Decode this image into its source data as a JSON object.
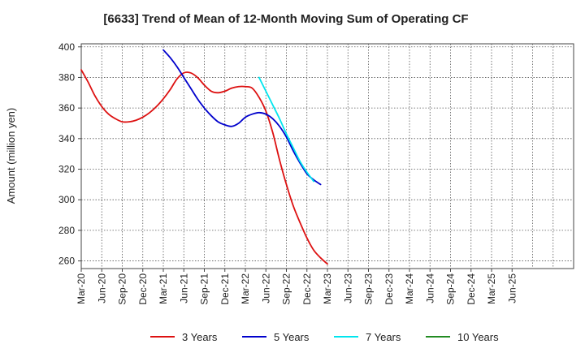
{
  "chart_data": {
    "type": "line",
    "title": "[6633]  Trend of Mean of 12-Month Moving Sum of Operating CF",
    "xlabel": "",
    "ylabel": "Amount (million yen)",
    "ylim": [
      255,
      402
    ],
    "yticks": [
      260,
      280,
      300,
      320,
      340,
      360,
      380,
      400
    ],
    "grid": true,
    "legend_position": "bottom",
    "x_tick_labels": [
      "Mar-20",
      "Jun-20",
      "Sep-20",
      "Dec-20",
      "Mar-21",
      "Jun-21",
      "Sep-21",
      "Dec-21",
      "Mar-22",
      "Jun-22",
      "Sep-22",
      "Dec-22",
      "Mar-23",
      "Jun-23",
      "Sep-23",
      "Dec-23",
      "Mar-24",
      "Jun-24",
      "Sep-24",
      "Dec-24",
      "Mar-25",
      "Jun-25"
    ],
    "series": [
      {
        "name": "3 Years",
        "color": "#dd1111",
        "points": [
          [
            0,
            385
          ],
          [
            1,
            377
          ],
          [
            2,
            368
          ],
          [
            3,
            361
          ],
          [
            4,
            356
          ],
          [
            5,
            353
          ],
          [
            6,
            351
          ],
          [
            7,
            351
          ],
          [
            8,
            352
          ],
          [
            9,
            354
          ],
          [
            10,
            357
          ],
          [
            11,
            361
          ],
          [
            12,
            366
          ],
          [
            13,
            372
          ],
          [
            14,
            379
          ],
          [
            15,
            383
          ],
          [
            16,
            383
          ],
          [
            17,
            380
          ],
          [
            18,
            375
          ],
          [
            19,
            371
          ],
          [
            20,
            370
          ],
          [
            21,
            371
          ],
          [
            22,
            373
          ],
          [
            23,
            374
          ],
          [
            24,
            374
          ],
          [
            25,
            373
          ],
          [
            26,
            367
          ],
          [
            27,
            358
          ],
          [
            28,
            344
          ],
          [
            29,
            326
          ],
          [
            30,
            310
          ],
          [
            31,
            296
          ],
          [
            32,
            285
          ],
          [
            33,
            275
          ],
          [
            34,
            267
          ],
          [
            35,
            262
          ],
          [
            36,
            258
          ]
        ]
      },
      {
        "name": "5 Years",
        "color": "#0000cc",
        "points": [
          [
            12,
            398
          ],
          [
            13,
            393
          ],
          [
            14,
            387
          ],
          [
            15,
            380
          ],
          [
            16,
            373
          ],
          [
            17,
            366
          ],
          [
            18,
            360
          ],
          [
            19,
            355
          ],
          [
            20,
            351
          ],
          [
            21,
            349
          ],
          [
            22,
            348
          ],
          [
            23,
            350
          ],
          [
            24,
            354
          ],
          [
            25,
            356
          ],
          [
            26,
            357
          ],
          [
            27,
            356
          ],
          [
            28,
            353
          ],
          [
            29,
            348
          ],
          [
            30,
            341
          ],
          [
            31,
            332
          ],
          [
            32,
            324
          ],
          [
            33,
            317
          ],
          [
            34,
            313
          ],
          [
            35,
            310
          ]
        ]
      },
      {
        "name": "7 Years",
        "color": "#00e5ee",
        "points": [
          [
            26,
            380
          ],
          [
            27,
            371
          ],
          [
            28,
            362
          ],
          [
            29,
            353
          ],
          [
            30,
            343
          ],
          [
            31,
            334
          ],
          [
            32,
            325
          ],
          [
            33,
            318
          ],
          [
            34,
            312
          ]
        ]
      },
      {
        "name": "10 Years",
        "color": "#228b22",
        "points": []
      }
    ]
  }
}
